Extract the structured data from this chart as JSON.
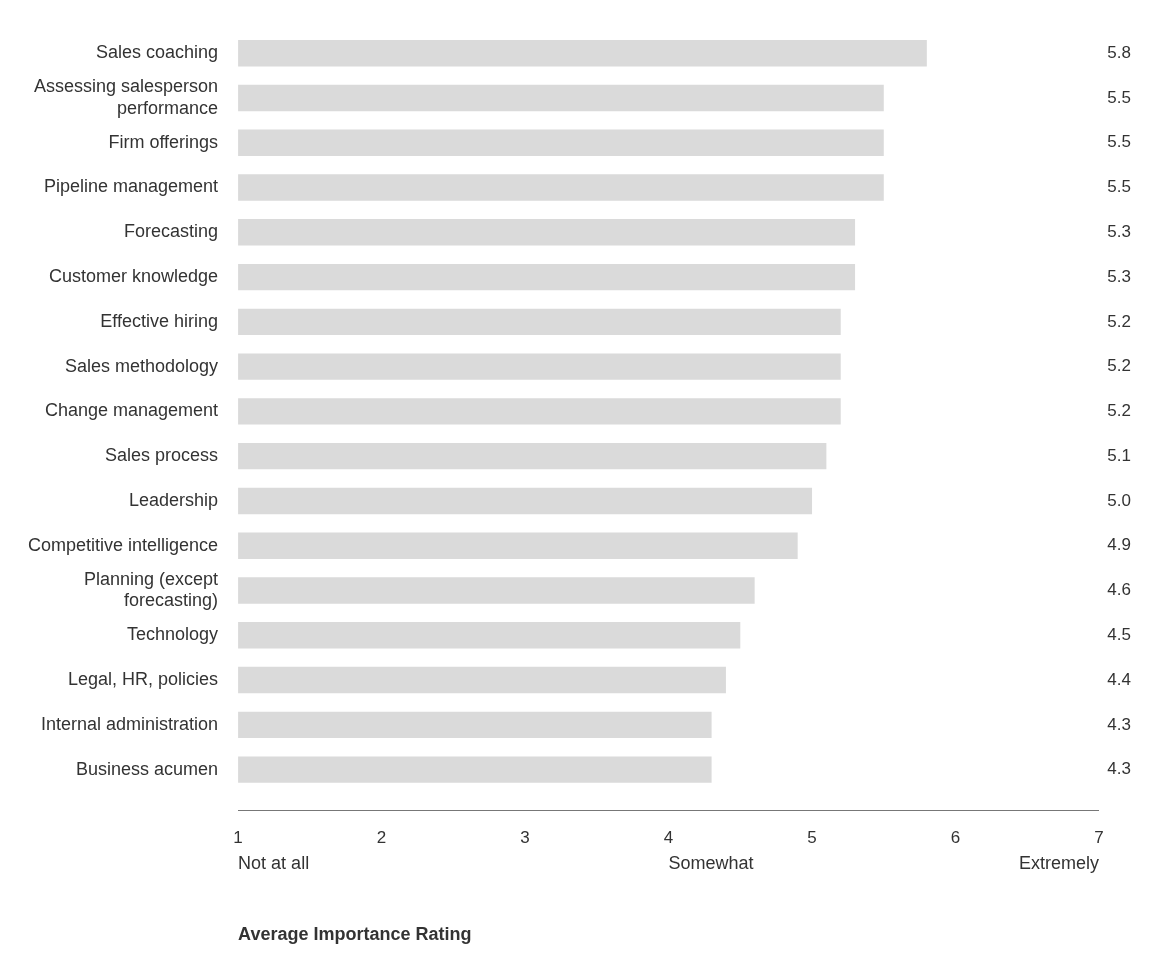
{
  "chart_data": {
    "type": "bar",
    "orientation": "horizontal",
    "xlabel": "Average Importance Rating",
    "categories": [
      "Sales coaching",
      "Assessing salesperson performance",
      "Firm offerings",
      "Pipeline management",
      "Forecasting",
      "Customer knowledge",
      "Effective hiring",
      "Sales methodology",
      "Change management",
      "Sales process",
      "Leadership",
      "Competitive intelligence",
      "Planning (except forecasting)",
      "Technology",
      "Legal, HR, policies",
      "Internal administration",
      "Business acumen"
    ],
    "values": [
      5.8,
      5.5,
      5.5,
      5.5,
      5.3,
      5.3,
      5.2,
      5.2,
      5.2,
      5.1,
      5.0,
      4.9,
      4.6,
      4.5,
      4.4,
      4.3,
      4.3
    ],
    "value_labels": [
      "5.8",
      "5.5",
      "5.5",
      "5.5",
      "5.3",
      "5.3",
      "5.2",
      "5.2",
      "5.2",
      "5.1",
      "5.0",
      "4.9",
      "4.6",
      "4.5",
      "4.4",
      "4.3",
      "4.3"
    ],
    "color": "#dadada",
    "xlim": [
      1,
      7
    ],
    "xticks": [
      1,
      2,
      3,
      4,
      5,
      6,
      7
    ],
    "grid": false,
    "legend": false,
    "annotations": [
      "Not at all",
      "Somewhat",
      "Extremely"
    ]
  }
}
